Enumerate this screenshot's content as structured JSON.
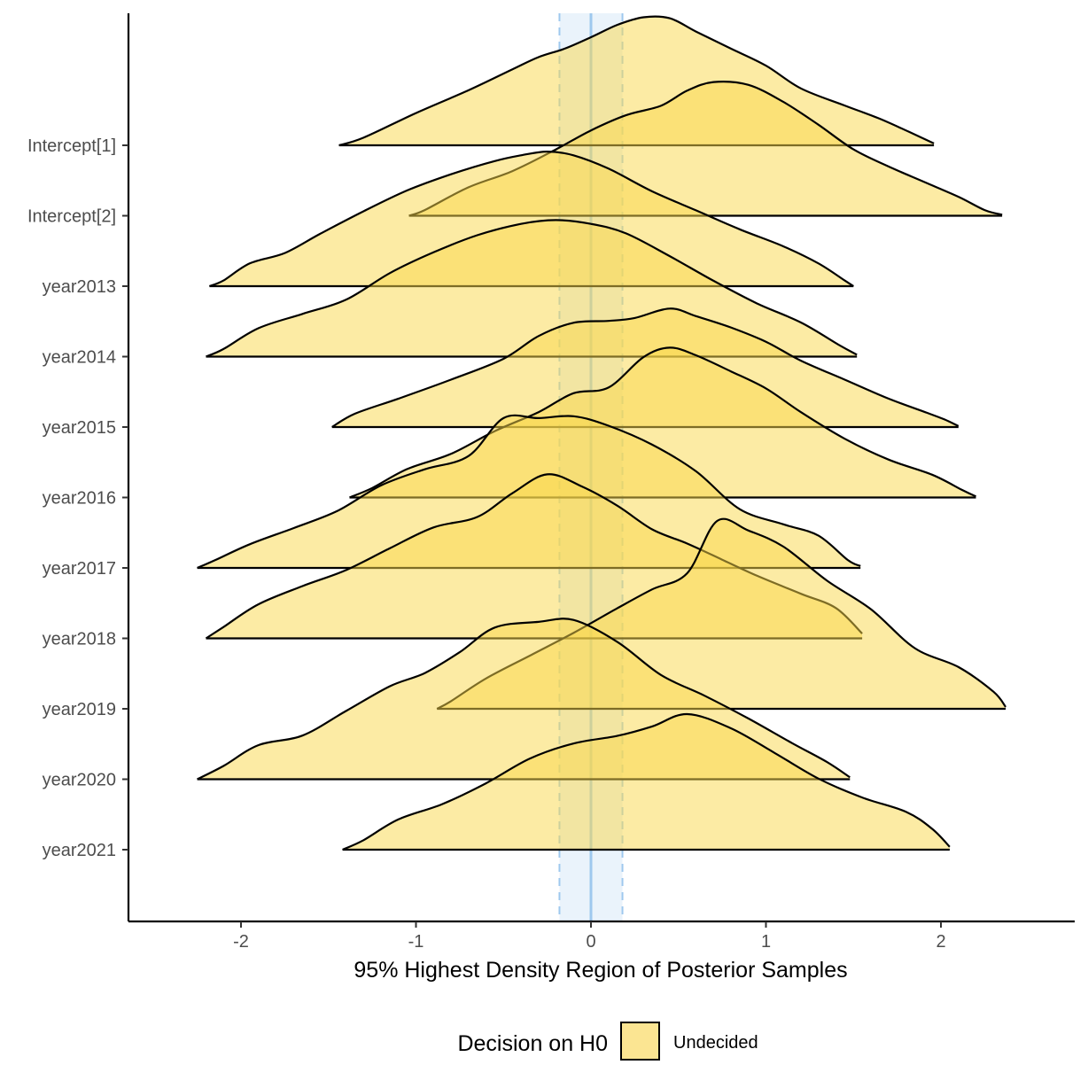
{
  "chart_data": {
    "type": "ridgeline",
    "xlabel": "95% Highest Density Region of Posterior Samples",
    "xlim": [
      -2.6,
      2.75
    ],
    "x_ticks": [
      -2,
      -1,
      0,
      1,
      2
    ],
    "x_tick_labels": [
      "-2",
      "-1",
      "0",
      "1",
      "2"
    ],
    "rope": {
      "lower": -0.18,
      "upper": 0.18,
      "center": 0,
      "fill_color": "#d6e8f8",
      "line_color": "#9ec8ee"
    },
    "ridge_fill": "#f9d849",
    "ridge_fill_opacity": 0.5,
    "legend": {
      "title": "Decision on H0",
      "position": "bottom",
      "entries": [
        {
          "label": "Undecided",
          "color": "#fbe592"
        }
      ]
    },
    "categories": [
      "Intercept[1]",
      "Intercept[2]",
      "year2013",
      "year2014",
      "year2015",
      "year2016",
      "year2017",
      "year2018",
      "year2019",
      "year2020",
      "year2021"
    ],
    "series": [
      {
        "name": "Intercept[1]",
        "points": [
          [
            -1.44,
            0
          ],
          [
            -1.3,
            0.08
          ],
          [
            -1.0,
            0.34
          ],
          [
            -0.7,
            0.58
          ],
          [
            -0.45,
            0.8
          ],
          [
            -0.3,
            0.93
          ],
          [
            -0.15,
            1.02
          ],
          [
            0.0,
            1.14
          ],
          [
            0.15,
            1.27
          ],
          [
            0.3,
            1.35
          ],
          [
            0.45,
            1.34
          ],
          [
            0.6,
            1.2
          ],
          [
            0.8,
            1.02
          ],
          [
            1.0,
            0.84
          ],
          [
            1.2,
            0.6
          ],
          [
            1.45,
            0.42
          ],
          [
            1.65,
            0.28
          ],
          [
            1.82,
            0.14
          ],
          [
            1.96,
            0.02
          ]
        ]
      },
      {
        "name": "Intercept[2]",
        "points": [
          [
            -1.04,
            0
          ],
          [
            -0.95,
            0.06
          ],
          [
            -0.7,
            0.3
          ],
          [
            -0.45,
            0.47
          ],
          [
            -0.2,
            0.7
          ],
          [
            0.0,
            0.9
          ],
          [
            0.2,
            1.06
          ],
          [
            0.4,
            1.16
          ],
          [
            0.55,
            1.32
          ],
          [
            0.7,
            1.41
          ],
          [
            0.9,
            1.38
          ],
          [
            1.1,
            1.2
          ],
          [
            1.3,
            0.96
          ],
          [
            1.5,
            0.7
          ],
          [
            1.7,
            0.52
          ],
          [
            1.9,
            0.36
          ],
          [
            2.1,
            0.2
          ],
          [
            2.25,
            0.06
          ],
          [
            2.35,
            0.01
          ]
        ]
      },
      {
        "name": "year2013",
        "points": [
          [
            -2.18,
            0
          ],
          [
            -2.1,
            0.06
          ],
          [
            -1.95,
            0.24
          ],
          [
            -1.75,
            0.35
          ],
          [
            -1.55,
            0.55
          ],
          [
            -1.3,
            0.79
          ],
          [
            -1.05,
            1.01
          ],
          [
            -0.8,
            1.18
          ],
          [
            -0.55,
            1.32
          ],
          [
            -0.4,
            1.38
          ],
          [
            -0.25,
            1.42
          ],
          [
            -0.1,
            1.38
          ],
          [
            0.1,
            1.24
          ],
          [
            0.35,
            1.0
          ],
          [
            0.6,
            0.8
          ],
          [
            0.85,
            0.6
          ],
          [
            1.1,
            0.42
          ],
          [
            1.3,
            0.24
          ],
          [
            1.45,
            0.06
          ],
          [
            1.5,
            0.0
          ]
        ]
      },
      {
        "name": "year2014",
        "points": [
          [
            -2.2,
            0
          ],
          [
            -2.1,
            0.08
          ],
          [
            -1.9,
            0.3
          ],
          [
            -1.65,
            0.45
          ],
          [
            -1.4,
            0.6
          ],
          [
            -1.15,
            0.88
          ],
          [
            -0.9,
            1.1
          ],
          [
            -0.65,
            1.28
          ],
          [
            -0.4,
            1.4
          ],
          [
            -0.2,
            1.44
          ],
          [
            0.0,
            1.4
          ],
          [
            0.2,
            1.3
          ],
          [
            0.45,
            1.06
          ],
          [
            0.7,
            0.8
          ],
          [
            0.95,
            0.56
          ],
          [
            1.2,
            0.36
          ],
          [
            1.42,
            0.12
          ],
          [
            1.52,
            0.02
          ]
        ]
      },
      {
        "name": "year2015",
        "points": [
          [
            -1.48,
            0
          ],
          [
            -1.35,
            0.14
          ],
          [
            -1.1,
            0.3
          ],
          [
            -0.8,
            0.5
          ],
          [
            -0.5,
            0.72
          ],
          [
            -0.3,
            0.96
          ],
          [
            -0.1,
            1.1
          ],
          [
            0.1,
            1.12
          ],
          [
            0.25,
            1.15
          ],
          [
            0.45,
            1.25
          ],
          [
            0.6,
            1.17
          ],
          [
            0.8,
            1.05
          ],
          [
            1.0,
            0.9
          ],
          [
            1.2,
            0.7
          ],
          [
            1.45,
            0.5
          ],
          [
            1.7,
            0.3
          ],
          [
            1.92,
            0.15
          ],
          [
            2.02,
            0.08
          ],
          [
            2.1,
            0.01
          ]
        ]
      },
      {
        "name": "year2016",
        "points": [
          [
            -1.38,
            0
          ],
          [
            -1.25,
            0.1
          ],
          [
            -1.05,
            0.3
          ],
          [
            -0.8,
            0.46
          ],
          [
            -0.55,
            0.7
          ],
          [
            -0.3,
            0.9
          ],
          [
            -0.1,
            1.1
          ],
          [
            0.1,
            1.16
          ],
          [
            0.3,
            1.48
          ],
          [
            0.45,
            1.58
          ],
          [
            0.6,
            1.5
          ],
          [
            0.8,
            1.33
          ],
          [
            1.0,
            1.15
          ],
          [
            1.2,
            0.9
          ],
          [
            1.45,
            0.62
          ],
          [
            1.7,
            0.4
          ],
          [
            1.95,
            0.24
          ],
          [
            2.12,
            0.08
          ],
          [
            2.2,
            0.01
          ]
        ]
      },
      {
        "name": "year2017",
        "points": [
          [
            -2.25,
            0
          ],
          [
            -2.15,
            0.08
          ],
          [
            -1.95,
            0.25
          ],
          [
            -1.7,
            0.42
          ],
          [
            -1.45,
            0.6
          ],
          [
            -1.2,
            0.87
          ],
          [
            -0.95,
            1.04
          ],
          [
            -0.7,
            1.18
          ],
          [
            -0.5,
            1.58
          ],
          [
            -0.3,
            1.58
          ],
          [
            -0.1,
            1.6
          ],
          [
            0.1,
            1.5
          ],
          [
            0.35,
            1.3
          ],
          [
            0.6,
            1.02
          ],
          [
            0.85,
            0.62
          ],
          [
            1.1,
            0.46
          ],
          [
            1.3,
            0.34
          ],
          [
            1.47,
            0.08
          ],
          [
            1.54,
            0.02
          ]
        ]
      },
      {
        "name": "year2018",
        "points": [
          [
            -2.2,
            0
          ],
          [
            -2.1,
            0.12
          ],
          [
            -1.9,
            0.36
          ],
          [
            -1.65,
            0.55
          ],
          [
            -1.4,
            0.72
          ],
          [
            -1.15,
            0.95
          ],
          [
            -0.9,
            1.17
          ],
          [
            -0.65,
            1.28
          ],
          [
            -0.45,
            1.53
          ],
          [
            -0.25,
            1.73
          ],
          [
            -0.05,
            1.6
          ],
          [
            0.15,
            1.4
          ],
          [
            0.35,
            1.15
          ],
          [
            0.55,
            1.0
          ],
          [
            0.75,
            0.83
          ],
          [
            0.95,
            0.66
          ],
          [
            1.2,
            0.47
          ],
          [
            1.4,
            0.32
          ],
          [
            1.55,
            0.05
          ]
        ]
      },
      {
        "name": "year2019",
        "points": [
          [
            -0.88,
            0
          ],
          [
            -0.8,
            0.08
          ],
          [
            -0.6,
            0.32
          ],
          [
            -0.35,
            0.56
          ],
          [
            -0.1,
            0.8
          ],
          [
            0.15,
            1.06
          ],
          [
            0.35,
            1.26
          ],
          [
            0.55,
            1.43
          ],
          [
            0.72,
            1.98
          ],
          [
            0.9,
            1.88
          ],
          [
            1.1,
            1.71
          ],
          [
            1.35,
            1.35
          ],
          [
            1.6,
            1.05
          ],
          [
            1.85,
            0.64
          ],
          [
            2.1,
            0.44
          ],
          [
            2.3,
            0.18
          ],
          [
            2.37,
            0.02
          ]
        ]
      },
      {
        "name": "year2020",
        "points": [
          [
            -2.25,
            0
          ],
          [
            -2.1,
            0.14
          ],
          [
            -1.9,
            0.36
          ],
          [
            -1.65,
            0.46
          ],
          [
            -1.4,
            0.72
          ],
          [
            -1.15,
            0.98
          ],
          [
            -0.95,
            1.12
          ],
          [
            -0.75,
            1.34
          ],
          [
            -0.55,
            1.6
          ],
          [
            -0.3,
            1.66
          ],
          [
            -0.1,
            1.68
          ],
          [
            0.15,
            1.45
          ],
          [
            0.4,
            1.1
          ],
          [
            0.65,
            0.88
          ],
          [
            0.9,
            0.64
          ],
          [
            1.15,
            0.38
          ],
          [
            1.35,
            0.18
          ],
          [
            1.48,
            0.02
          ]
        ]
      },
      {
        "name": "year2021",
        "points": [
          [
            -1.42,
            0
          ],
          [
            -1.3,
            0.1
          ],
          [
            -1.1,
            0.32
          ],
          [
            -0.85,
            0.48
          ],
          [
            -0.6,
            0.7
          ],
          [
            -0.35,
            0.96
          ],
          [
            -0.1,
            1.12
          ],
          [
            0.15,
            1.2
          ],
          [
            0.35,
            1.3
          ],
          [
            0.55,
            1.43
          ],
          [
            0.8,
            1.28
          ],
          [
            1.05,
            1.02
          ],
          [
            1.3,
            0.75
          ],
          [
            1.55,
            0.55
          ],
          [
            1.8,
            0.4
          ],
          [
            1.95,
            0.22
          ],
          [
            2.05,
            0.03
          ]
        ]
      }
    ]
  }
}
